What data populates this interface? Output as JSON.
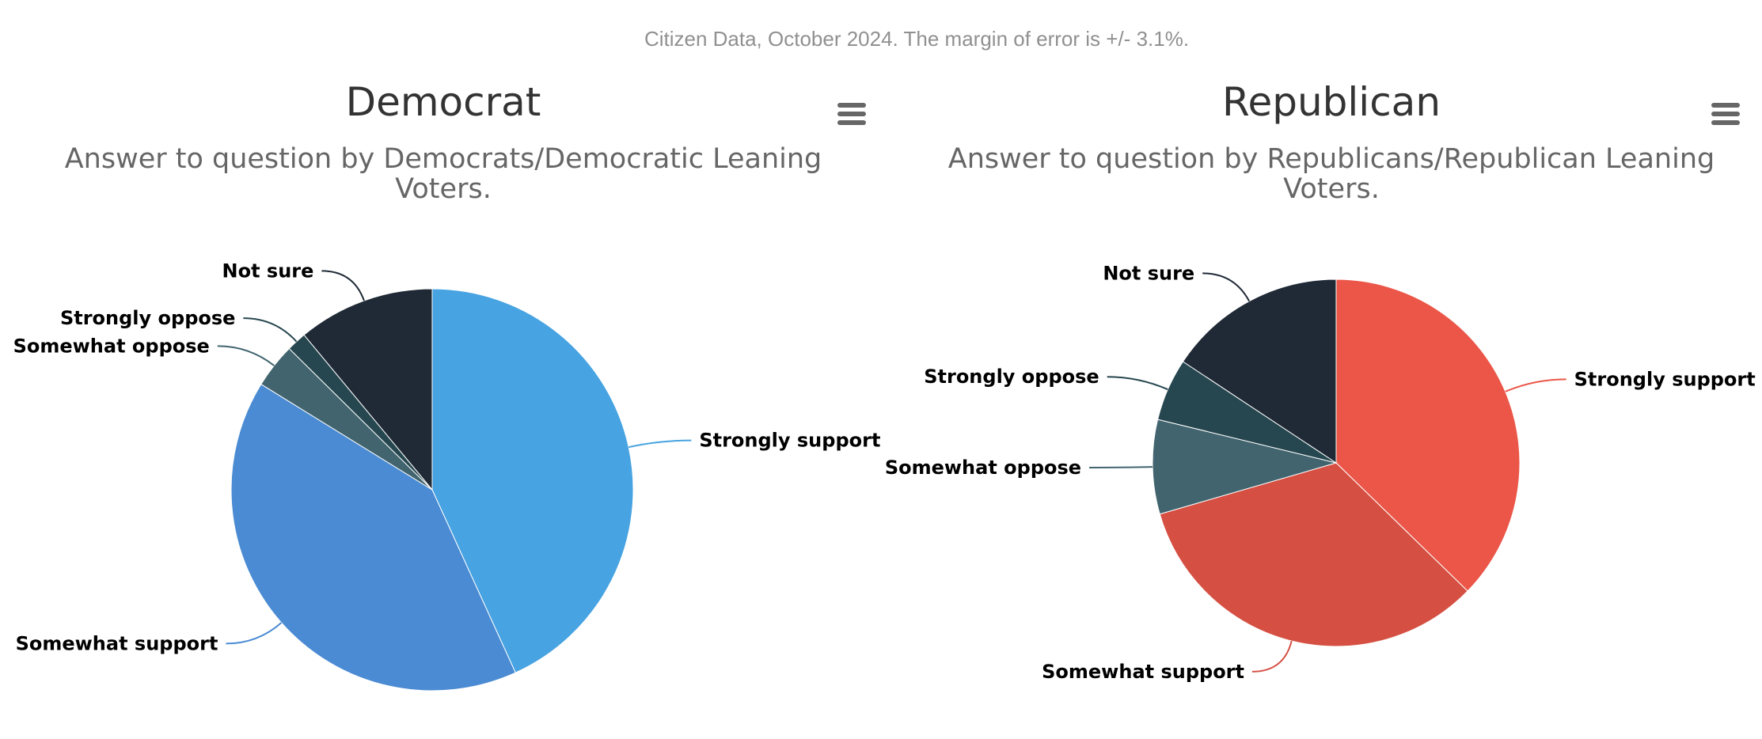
{
  "source_note": "Citizen Data, October 2024. The margin of error is +/- 3.1%.",
  "chart_data": [
    {
      "type": "pie",
      "title": "Democrat",
      "subtitle": "Answer to question by Democrats/Democratic Leaning Voters.",
      "start_angle": 0,
      "slices": [
        {
          "name": "Strongly support",
          "value": 43.2,
          "color": "#47a3e1"
        },
        {
          "name": "Somewhat support",
          "value": 40.6,
          "color": "#4a8bd3"
        },
        {
          "name": "Somewhat oppose",
          "value": 3.6,
          "color": "#41646f"
        },
        {
          "name": "Strongly oppose",
          "value": 1.6,
          "color": "#274750"
        },
        {
          "name": "Not sure",
          "value": 11.0,
          "color": "#1f2a36"
        }
      ]
    },
    {
      "type": "pie",
      "title": "Republican",
      "subtitle": "Answer to question by Republicans/Republican Leaning Voters.",
      "start_angle": 0,
      "slices": [
        {
          "name": "Strongly support",
          "value": 37.3,
          "color": "#eb5648"
        },
        {
          "name": "Somewhat support",
          "value": 33.2,
          "color": "#d54f42"
        },
        {
          "name": "Somewhat oppose",
          "value": 8.3,
          "color": "#41646f"
        },
        {
          "name": "Strongly oppose",
          "value": 5.5,
          "color": "#274750"
        },
        {
          "name": "Not sure",
          "value": 15.7,
          "color": "#1f2a36"
        }
      ]
    }
  ]
}
